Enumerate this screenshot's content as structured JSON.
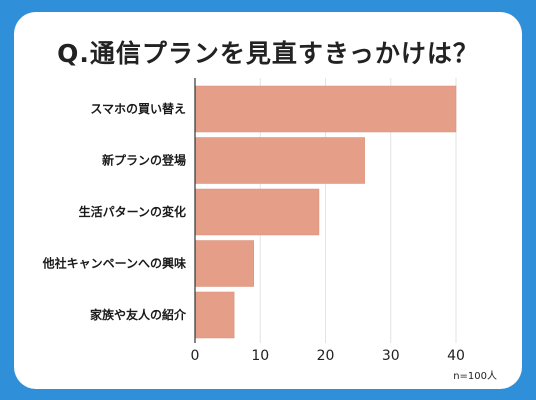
{
  "chart_data": {
    "type": "bar",
    "orientation": "horizontal",
    "title": "Q.通信プランを見直すきっかけは？",
    "categories": [
      "スマホの買い替え",
      "新プランの登場",
      "生活パターンの変化",
      "他社キャンペーンへの興味",
      "家族や友人の紹介"
    ],
    "values": [
      40,
      26,
      19,
      9,
      6
    ],
    "xlim": [
      0,
      45
    ],
    "x_ticks": [
      "0",
      "10",
      "20",
      "30",
      "40"
    ],
    "grid": true,
    "bar_color": "#e59e88",
    "note": "n=100人"
  },
  "colors": {
    "background": "#2f8fd8",
    "card": "#ffffff",
    "bar": "#e59e88",
    "bar_edge": "#d98f78",
    "grid": "#e3e3e3"
  }
}
